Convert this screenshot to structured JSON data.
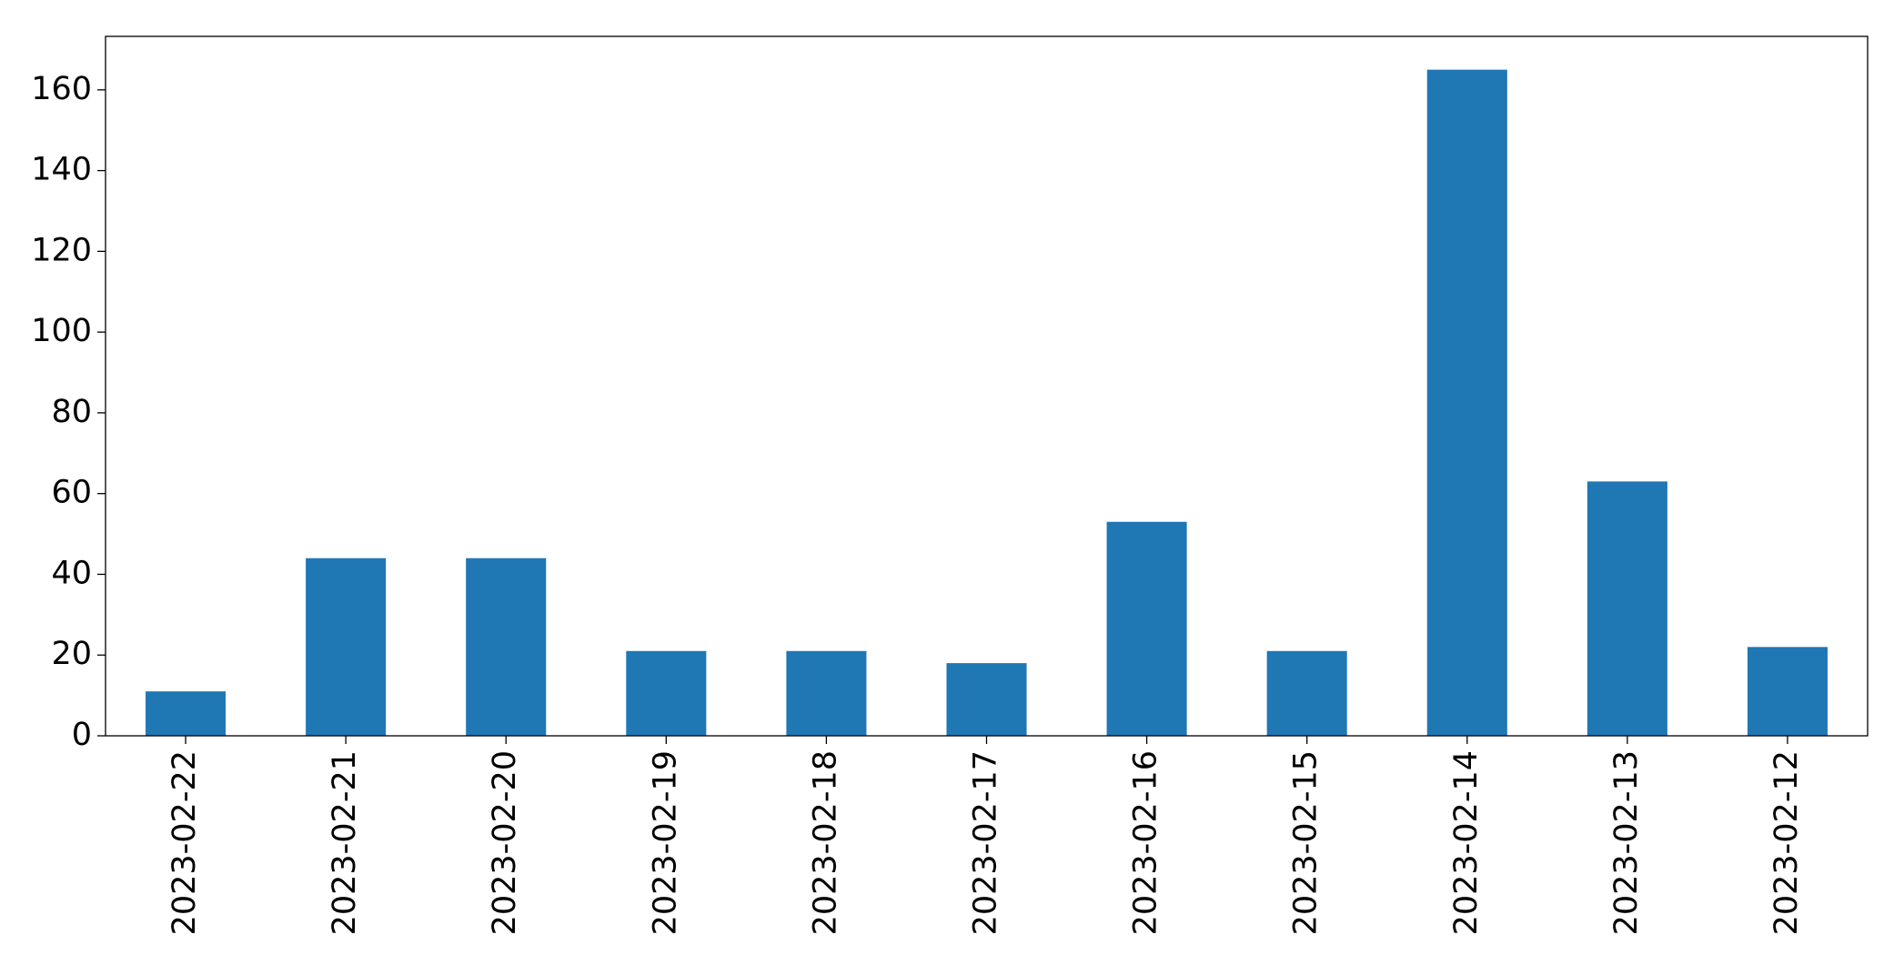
{
  "chart_data": {
    "type": "bar",
    "categories": [
      "2023-02-22",
      "2023-02-21",
      "2023-02-20",
      "2023-02-19",
      "2023-02-18",
      "2023-02-17",
      "2023-02-16",
      "2023-02-15",
      "2023-02-14",
      "2023-02-13",
      "2023-02-12"
    ],
    "values": [
      11,
      44,
      44,
      21,
      21,
      18,
      53,
      21,
      165,
      63,
      22
    ],
    "color": "#1f77b4",
    "ylim": [
      0,
      173.25
    ],
    "yticks": [
      0,
      20,
      40,
      60,
      80,
      100,
      120,
      140,
      160
    ],
    "grid": false
  }
}
